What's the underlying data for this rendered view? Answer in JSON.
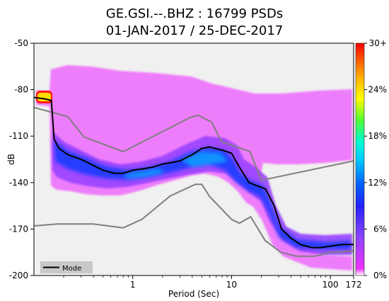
{
  "chart_data": {
    "type": "heatmap",
    "title_line1": "GE.GSI.--.BHZ : 16799 PSDs",
    "title_line2": "01-JAN-2017 / 25-DEC-2017",
    "xlabel": "Period (Sec)",
    "ylabel": "dB",
    "x_scale": "log",
    "xlim": [
      0.1,
      172
    ],
    "ylim": [
      -200,
      -50
    ],
    "x_ticks": [
      {
        "value": 1,
        "label": "1"
      },
      {
        "value": 10,
        "label": "10"
      },
      {
        "value": 100,
        "label": "100"
      },
      {
        "value": 172,
        "label": "172"
      }
    ],
    "y_ticks": [
      -50,
      -80,
      -110,
      -140,
      -170,
      -200
    ],
    "colorbar": {
      "ticks": [
        {
          "value": 0,
          "label": "0%"
        },
        {
          "value": 6,
          "label": "6%"
        },
        {
          "value": 12,
          "label": "12%"
        },
        {
          "value": 18,
          "label": "18%"
        },
        {
          "value": 24,
          "label": "24%"
        },
        {
          "value": 30,
          "label": "30+"
        }
      ]
    },
    "legend": {
      "position": "bottom-left",
      "label": "Mode"
    },
    "mode_curve": [
      [
        0.1,
        -85
      ],
      [
        0.13,
        -86
      ],
      [
        0.15,
        -87
      ],
      [
        0.16,
        -112
      ],
      [
        0.18,
        -118
      ],
      [
        0.22,
        -122
      ],
      [
        0.3,
        -125
      ],
      [
        0.4,
        -129
      ],
      [
        0.5,
        -132
      ],
      [
        0.65,
        -134
      ],
      [
        0.8,
        -134
      ],
      [
        1.0,
        -132
      ],
      [
        1.3,
        -131
      ],
      [
        1.6,
        -130
      ],
      [
        2.0,
        -128
      ],
      [
        2.5,
        -127
      ],
      [
        3.0,
        -126
      ],
      [
        4.0,
        -122
      ],
      [
        5.0,
        -118
      ],
      [
        6.0,
        -117
      ],
      [
        8.0,
        -119
      ],
      [
        10.0,
        -121
      ],
      [
        12.0,
        -130
      ],
      [
        15.0,
        -140
      ],
      [
        18.0,
        -142
      ],
      [
        22.0,
        -144
      ],
      [
        27.0,
        -155
      ],
      [
        32.0,
        -170
      ],
      [
        40.0,
        -176
      ],
      [
        50.0,
        -180
      ],
      [
        65.0,
        -182
      ],
      [
        80.0,
        -182
      ],
      [
        100.0,
        -181
      ],
      [
        130.0,
        -180
      ],
      [
        172.0,
        -180
      ]
    ],
    "high_noise_model": [
      [
        0.1,
        -91.5
      ],
      [
        0.22,
        -97.4
      ],
      [
        0.32,
        -110.5
      ],
      [
        0.8,
        -120
      ],
      [
        3.8,
        -98
      ],
      [
        4.6,
        -96.5
      ],
      [
        6.3,
        -101
      ],
      [
        7.9,
        -113.5
      ],
      [
        15.4,
        -120
      ],
      [
        20.0,
        -138.5
      ],
      [
        172.0,
        -126
      ]
    ],
    "low_noise_model": [
      [
        0.1,
        -168
      ],
      [
        0.17,
        -166.7
      ],
      [
        0.4,
        -166.7
      ],
      [
        0.8,
        -169.2
      ],
      [
        1.24,
        -163.7
      ],
      [
        2.4,
        -148.6
      ],
      [
        4.3,
        -141.1
      ],
      [
        5.0,
        -141.1
      ],
      [
        6.0,
        -149
      ],
      [
        10.0,
        -163.8
      ],
      [
        12.0,
        -166.2
      ],
      [
        15.6,
        -162.1
      ],
      [
        21.9,
        -177.5
      ],
      [
        31.6,
        -185
      ],
      [
        45.0,
        -187.5
      ],
      [
        70.0,
        -187.5
      ],
      [
        101.0,
        -185
      ],
      [
        154.0,
        -184.4
      ],
      [
        172.0,
        -184
      ]
    ]
  }
}
